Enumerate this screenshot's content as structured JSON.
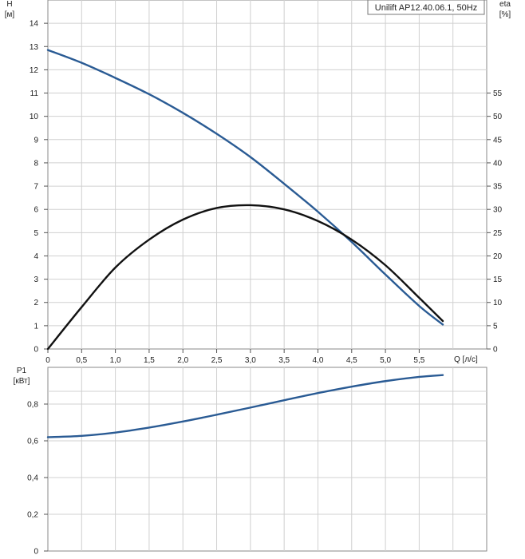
{
  "chart_data": [
    {
      "type": "line",
      "legend": "Unilift AP12.40.06.1, 50Hz",
      "legend_position": "top-right",
      "xlabel": "Q [л/с]",
      "ylabel": "H",
      "ylabel_unit": "[м]",
      "y2label": "eta",
      "y2label_unit": "[%]",
      "xlim": [
        0,
        6.5
      ],
      "ylim": [
        0,
        15
      ],
      "y2lim": [
        0,
        75
      ],
      "x_ticks": [
        0,
        0.5,
        1.0,
        1.5,
        2.0,
        2.5,
        3.0,
        3.5,
        4.0,
        4.5,
        5.0,
        5.5
      ],
      "x_tick_labels": [
        "0",
        "0,5",
        "1,0",
        "1,5",
        "2,0",
        "2,5",
        "3,0",
        "3,5",
        "4,0",
        "4,5",
        "5,0",
        "5,5"
      ],
      "y_ticks": [
        0,
        1,
        2,
        3,
        4,
        5,
        6,
        7,
        8,
        9,
        10,
        11,
        12,
        13,
        14
      ],
      "y2_ticks": [
        0,
        5,
        10,
        15,
        20,
        25,
        30,
        35,
        40,
        45,
        50,
        55
      ],
      "grid": true,
      "series": [
        {
          "axis": "left",
          "color": "#2a5b94",
          "x": [
            0,
            0.5,
            1.0,
            1.5,
            2.0,
            2.5,
            3.0,
            3.5,
            4.0,
            4.5,
            5.0,
            5.5,
            5.85
          ],
          "y": [
            12.85,
            12.3,
            11.65,
            10.95,
            10.15,
            9.25,
            8.25,
            7.1,
            5.9,
            4.6,
            3.2,
            1.85,
            1.05
          ]
        },
        {
          "axis": "right",
          "color": "#111111",
          "x": [
            0,
            0.5,
            1.0,
            1.5,
            2.0,
            2.5,
            3.0,
            3.5,
            4.0,
            4.5,
            5.0,
            5.5,
            5.85
          ],
          "y": [
            0,
            9,
            17.5,
            23.5,
            27.8,
            30.3,
            30.9,
            30.0,
            27.5,
            23.5,
            18.0,
            11.0,
            6.0
          ]
        }
      ]
    },
    {
      "type": "line",
      "xlabel": "",
      "ylabel": "P1",
      "ylabel_unit": "[кВт]",
      "xlim": [
        0,
        6.5
      ],
      "ylim": [
        0,
        1.0
      ],
      "y_ticks": [
        0,
        0.2,
        0.4,
        0.6,
        0.8
      ],
      "y_tick_labels": [
        "0",
        "0,2",
        "0,4",
        "0,6",
        "0,8"
      ],
      "grid": true,
      "series": [
        {
          "color": "#2a5b94",
          "x": [
            0,
            0.5,
            1.0,
            1.5,
            2.0,
            2.5,
            3.0,
            3.5,
            4.0,
            4.5,
            5.0,
            5.5,
            5.85
          ],
          "y": [
            0.62,
            0.627,
            0.645,
            0.672,
            0.705,
            0.742,
            0.781,
            0.821,
            0.86,
            0.895,
            0.925,
            0.948,
            0.958
          ]
        }
      ]
    }
  ]
}
